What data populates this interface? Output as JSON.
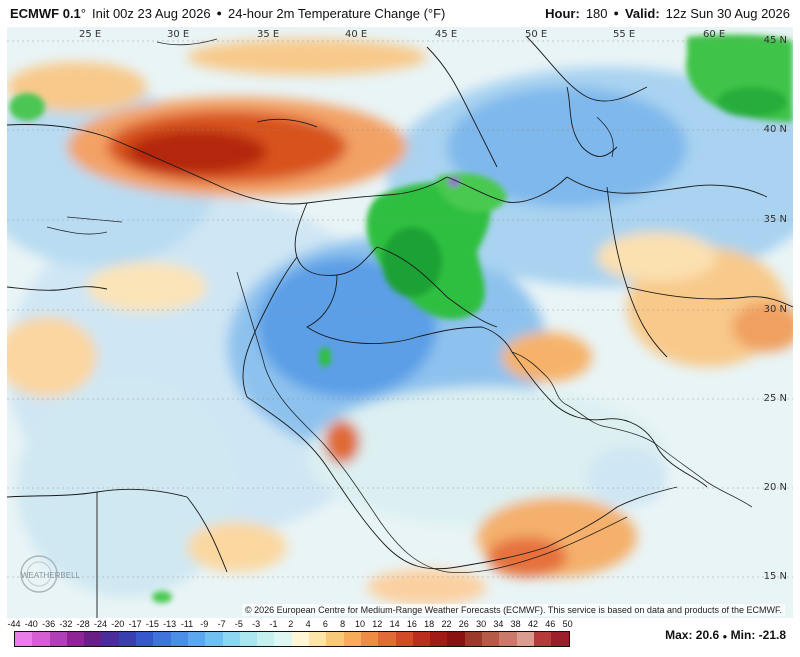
{
  "header": {
    "model": "ECMWF 0.1",
    "degree_symbol": "°",
    "init": "Init 00z 23 Aug 2026",
    "bullet": "●",
    "product": "24-hour 2m Temperature Change (°F)",
    "hour_label": "Hour:",
    "hour_value": "180",
    "valid_label": "Valid:",
    "valid_value": "12z Sun 30 Aug 2026"
  },
  "map": {
    "longitude_labels": [
      "25 E",
      "30 E",
      "35 E",
      "40 E",
      "45 E",
      "50 E",
      "55 E",
      "60 E"
    ],
    "latitude_labels": [
      "45 N",
      "40 N",
      "35 N",
      "30 N",
      "25 N",
      "20 N",
      "15 N"
    ],
    "credit": "© 2026 European Centre for Medium-Range Weather Forecasts (ECMWF). This service is based on data and products of the ECMWF.",
    "logo_text": "WEATHERBELL"
  },
  "colorbar": {
    "ticks": [
      "-44",
      "-40",
      "-36",
      "-32",
      "-28",
      "-24",
      "-20",
      "-17",
      "-15",
      "-13",
      "-11",
      "-9",
      "-7",
      "-5",
      "-3",
      "-1",
      "2",
      "4",
      "6",
      "8",
      "10",
      "12",
      "14",
      "16",
      "18",
      "22",
      "26",
      "30",
      "34",
      "38",
      "42",
      "46",
      "50"
    ],
    "colors": [
      "#e97ee9",
      "#d35fd3",
      "#b040b5",
      "#8e2496",
      "#6a1f86",
      "#4a2c9a",
      "#3a3fb0",
      "#3658cc",
      "#3f74dc",
      "#4c8ee6",
      "#5ea6ee",
      "#72c0f0",
      "#8dd6f2",
      "#a9e6f0",
      "#c5f0ee",
      "#dff7f3",
      "#fff6d6",
      "#fde4a8",
      "#f9c97a",
      "#f5ad5a",
      "#ee8b45",
      "#e26a36",
      "#d24a28",
      "#bb2e1e",
      "#a31b16",
      "#8a1213",
      "#9a3a2a",
      "#b45a46",
      "#c97a6a",
      "#db9c92",
      "#b63a3a",
      "#9b1f2a"
    ],
    "max_label": "Max: 20.6",
    "separator": "●",
    "min_label": "Min: -21.8"
  },
  "colors": {
    "warm_dark": "#b4260e",
    "warm": "#e9894a",
    "warm_light": "#f8c98a",
    "neutral": "#eef6f6",
    "cool_light": "#bfe2f0",
    "cool": "#6eaee8",
    "cool_mid": "#3b7fe0",
    "cold_green": "#23b33a",
    "cold_green_light": "#5fcf5a",
    "cold_purple": "#9a66d6"
  }
}
